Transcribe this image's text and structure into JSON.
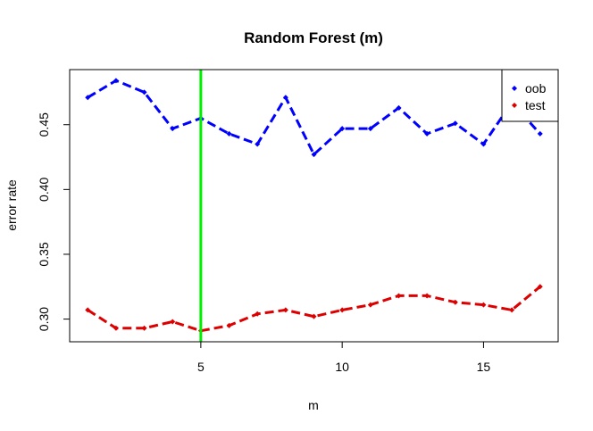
{
  "chart_data": {
    "type": "line",
    "title": "Random Forest (m)",
    "xlabel": "m",
    "ylabel": "error rate",
    "x": [
      1,
      2,
      3,
      4,
      5,
      6,
      7,
      8,
      9,
      10,
      11,
      12,
      13,
      14,
      15,
      16,
      17
    ],
    "xlim": [
      0.36,
      17.64
    ],
    "ylim": [
      0.2825,
      0.4925
    ],
    "x_ticks": [
      5,
      10,
      15
    ],
    "x_tick_labels": [
      "5",
      "10",
      "15"
    ],
    "y_ticks": [
      0.3,
      0.35,
      0.4,
      0.45
    ],
    "y_tick_labels": [
      "0.30",
      "0.35",
      "0.40",
      "0.45"
    ],
    "series": [
      {
        "name": "oob",
        "color": "#0000ff",
        "values": [
          0.471,
          0.484,
          0.475,
          0.447,
          0.455,
          0.443,
          0.435,
          0.471,
          0.427,
          0.447,
          0.447,
          0.463,
          0.443,
          0.451,
          0.435,
          0.467,
          0.443
        ]
      },
      {
        "name": "test",
        "color": "#dd0000",
        "values": [
          0.307,
          0.293,
          0.293,
          0.298,
          0.291,
          0.295,
          0.304,
          0.307,
          0.302,
          0.307,
          0.311,
          0.318,
          0.318,
          0.313,
          0.311,
          0.307,
          0.325
        ]
      }
    ],
    "vline": {
      "x": 5,
      "color": "#00ee00"
    },
    "legend": {
      "position": "top-right",
      "marker": "diamond"
    },
    "grid": false
  }
}
